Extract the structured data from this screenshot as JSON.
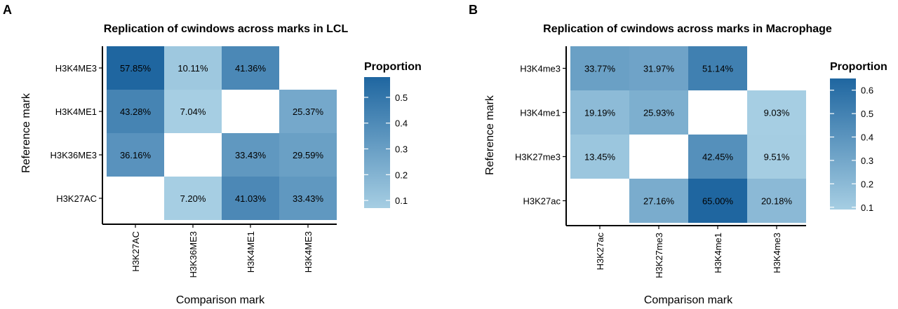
{
  "chart_data": [
    {
      "type": "heatmap",
      "panel_label": "A",
      "title": "Replication of cwindows across marks in LCL",
      "xlabel": "Comparison mark",
      "ylabel": "Reference mark",
      "x_categories": [
        "H3K27AC",
        "H3K36ME3",
        "H3K4ME1",
        "H3K4ME3"
      ],
      "y_categories": [
        "H3K4ME3",
        "H3K4ME1",
        "H3K36ME3",
        "H3K27AC"
      ],
      "cells": [
        {
          "y": "H3K4ME3",
          "x": "H3K27AC",
          "value": 0.5785,
          "label": "57.85%"
        },
        {
          "y": "H3K4ME3",
          "x": "H3K36ME3",
          "value": 0.1011,
          "label": "10.11%"
        },
        {
          "y": "H3K4ME3",
          "x": "H3K4ME1",
          "value": 0.4136,
          "label": "41.36%"
        },
        {
          "y": "H3K4ME1",
          "x": "H3K27AC",
          "value": 0.4328,
          "label": "43.28%"
        },
        {
          "y": "H3K4ME1",
          "x": "H3K36ME3",
          "value": 0.0704,
          "label": "7.04%"
        },
        {
          "y": "H3K4ME1",
          "x": "H3K4ME3",
          "value": 0.2537,
          "label": "25.37%"
        },
        {
          "y": "H3K36ME3",
          "x": "H3K27AC",
          "value": 0.3616,
          "label": "36.16%"
        },
        {
          "y": "H3K36ME3",
          "x": "H3K4ME1",
          "value": 0.3343,
          "label": "33.43%"
        },
        {
          "y": "H3K36ME3",
          "x": "H3K4ME3",
          "value": 0.2959,
          "label": "29.59%"
        },
        {
          "y": "H3K27AC",
          "x": "H3K36ME3",
          "value": 0.072,
          "label": "7.20%"
        },
        {
          "y": "H3K27AC",
          "x": "H3K4ME1",
          "value": 0.4103,
          "label": "41.03%"
        },
        {
          "y": "H3K27AC",
          "x": "H3K4ME3",
          "value": 0.3343,
          "label": "33.43%"
        }
      ],
      "legend": {
        "title": "Proportion",
        "min": 0.0704,
        "max": 0.5785,
        "ticks": [
          0.1,
          0.2,
          0.3,
          0.4,
          0.5
        ],
        "tick_labels": [
          "0.1",
          "0.2",
          "0.3",
          "0.4",
          "0.5"
        ],
        "placement": "right"
      },
      "colors": {
        "low": "#a6cee3",
        "high": "#1f66a0"
      }
    },
    {
      "type": "heatmap",
      "panel_label": "B",
      "title": "Replication of cwindows across marks in Macrophage",
      "xlabel": "Comparison mark",
      "ylabel": "Reference mark",
      "x_categories": [
        "H3K27ac",
        "H3K27me3",
        "H3K4me1",
        "H3K4me3"
      ],
      "y_categories": [
        "H3K4me3",
        "H3K4me1",
        "H3K27me3",
        "H3K27ac"
      ],
      "cells": [
        {
          "y": "H3K4me3",
          "x": "H3K27ac",
          "value": 0.3377,
          "label": "33.77%"
        },
        {
          "y": "H3K4me3",
          "x": "H3K27me3",
          "value": 0.3197,
          "label": "31.97%"
        },
        {
          "y": "H3K4me3",
          "x": "H3K4me1",
          "value": 0.5114,
          "label": "51.14%"
        },
        {
          "y": "H3K4me1",
          "x": "H3K27ac",
          "value": 0.1919,
          "label": "19.19%"
        },
        {
          "y": "H3K4me1",
          "x": "H3K27me3",
          "value": 0.2593,
          "label": "25.93%"
        },
        {
          "y": "H3K4me1",
          "x": "H3K4me3",
          "value": 0.0903,
          "label": "9.03%"
        },
        {
          "y": "H3K27me3",
          "x": "H3K27ac",
          "value": 0.1345,
          "label": "13.45%"
        },
        {
          "y": "H3K27me3",
          "x": "H3K4me1",
          "value": 0.4245,
          "label": "42.45%"
        },
        {
          "y": "H3K27me3",
          "x": "H3K4me3",
          "value": 0.0951,
          "label": "9.51%"
        },
        {
          "y": "H3K27ac",
          "x": "H3K27me3",
          "value": 0.2716,
          "label": "27.16%"
        },
        {
          "y": "H3K27ac",
          "x": "H3K4me1",
          "value": 0.65,
          "label": "65.00%"
        },
        {
          "y": "H3K27ac",
          "x": "H3K4me3",
          "value": 0.2018,
          "label": "20.18%"
        }
      ],
      "legend": {
        "title": "Proportion",
        "min": 0.0903,
        "max": 0.65,
        "ticks": [
          0.1,
          0.2,
          0.3,
          0.4,
          0.5,
          0.6
        ],
        "tick_labels": [
          "0.1",
          "0.2",
          "0.3",
          "0.4",
          "0.5",
          "0.6"
        ],
        "placement": "right"
      },
      "colors": {
        "low": "#a6cee3",
        "high": "#1f66a0"
      }
    }
  ]
}
